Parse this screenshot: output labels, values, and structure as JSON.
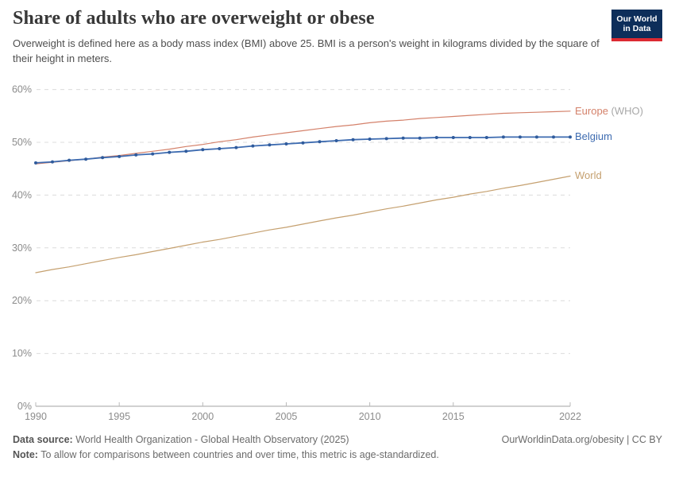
{
  "header": {
    "title": "Share of adults who are overweight or obese",
    "subtitle": "Overweight is defined here as a body mass index (BMI) above 25. BMI is a person's weight in kilograms divided by the square of their height in meters."
  },
  "logo": {
    "line1": "Our World",
    "line2": "in Data",
    "bg_color": "#0d2e5a",
    "accent_color": "#dc2a32"
  },
  "chart_data": {
    "type": "line",
    "title": "Share of adults who are overweight or obese",
    "x_label": "",
    "y_label": "",
    "ylim": [
      0,
      60
    ],
    "y_tick_step": 10,
    "y_tick_suffix": "%",
    "x_ticks": [
      1990,
      1995,
      2000,
      2005,
      2010,
      2015,
      2022
    ],
    "grid": "horizontal-dashed",
    "legend_position": "right-of-line-ends",
    "years": [
      1990,
      1991,
      1992,
      1993,
      1994,
      1995,
      1996,
      1997,
      1998,
      1999,
      2000,
      2001,
      2002,
      2003,
      2004,
      2005,
      2006,
      2007,
      2008,
      2009,
      2010,
      2011,
      2012,
      2013,
      2014,
      2015,
      2016,
      2017,
      2018,
      2019,
      2020,
      2021,
      2022
    ],
    "series": [
      {
        "name": "Europe (WHO)",
        "label": "Europe",
        "label_suffix": " (WHO)",
        "color": "#d4816a",
        "line_width": 1.2,
        "markers": false,
        "values": [
          45.9,
          46.2,
          46.5,
          46.8,
          47.2,
          47.5,
          47.9,
          48.3,
          48.7,
          49.2,
          49.6,
          50.1,
          50.5,
          51.0,
          51.4,
          51.8,
          52.2,
          52.6,
          53.0,
          53.3,
          53.7,
          54.0,
          54.2,
          54.5,
          54.7,
          54.9,
          55.1,
          55.3,
          55.5,
          55.6,
          55.7,
          55.8,
          55.9
        ]
      },
      {
        "name": "Belgium",
        "label": "Belgium",
        "label_suffix": "",
        "color": "#3d6bb0",
        "marker_color": "#2f5b9c",
        "line_width": 1.8,
        "markers": true,
        "values": [
          46.1,
          46.3,
          46.6,
          46.8,
          47.1,
          47.3,
          47.6,
          47.8,
          48.1,
          48.3,
          48.6,
          48.8,
          49.0,
          49.3,
          49.5,
          49.7,
          49.9,
          50.1,
          50.3,
          50.5,
          50.6,
          50.7,
          50.8,
          50.8,
          50.9,
          50.9,
          50.9,
          50.9,
          51.0,
          51.0,
          51.0,
          51.0,
          51.0
        ]
      },
      {
        "name": "World",
        "label": "World",
        "label_suffix": "",
        "color": "#c5a06f",
        "line_width": 1.2,
        "markers": false,
        "values": [
          25.3,
          25.9,
          26.4,
          27.0,
          27.6,
          28.2,
          28.7,
          29.3,
          29.9,
          30.5,
          31.1,
          31.6,
          32.2,
          32.8,
          33.4,
          33.9,
          34.5,
          35.1,
          35.7,
          36.2,
          36.8,
          37.4,
          37.9,
          38.5,
          39.1,
          39.6,
          40.2,
          40.7,
          41.3,
          41.8,
          42.4,
          43.0,
          43.6
        ]
      }
    ]
  },
  "footer": {
    "source_label": "Data source:",
    "source_text": " World Health Organization - Global Health Observatory (2025)",
    "attribution": "OurWorldinData.org/obesity | CC BY",
    "note_label": "Note:",
    "note_text": " To allow for comparisons between countries and over time, this metric is age-standardized."
  }
}
